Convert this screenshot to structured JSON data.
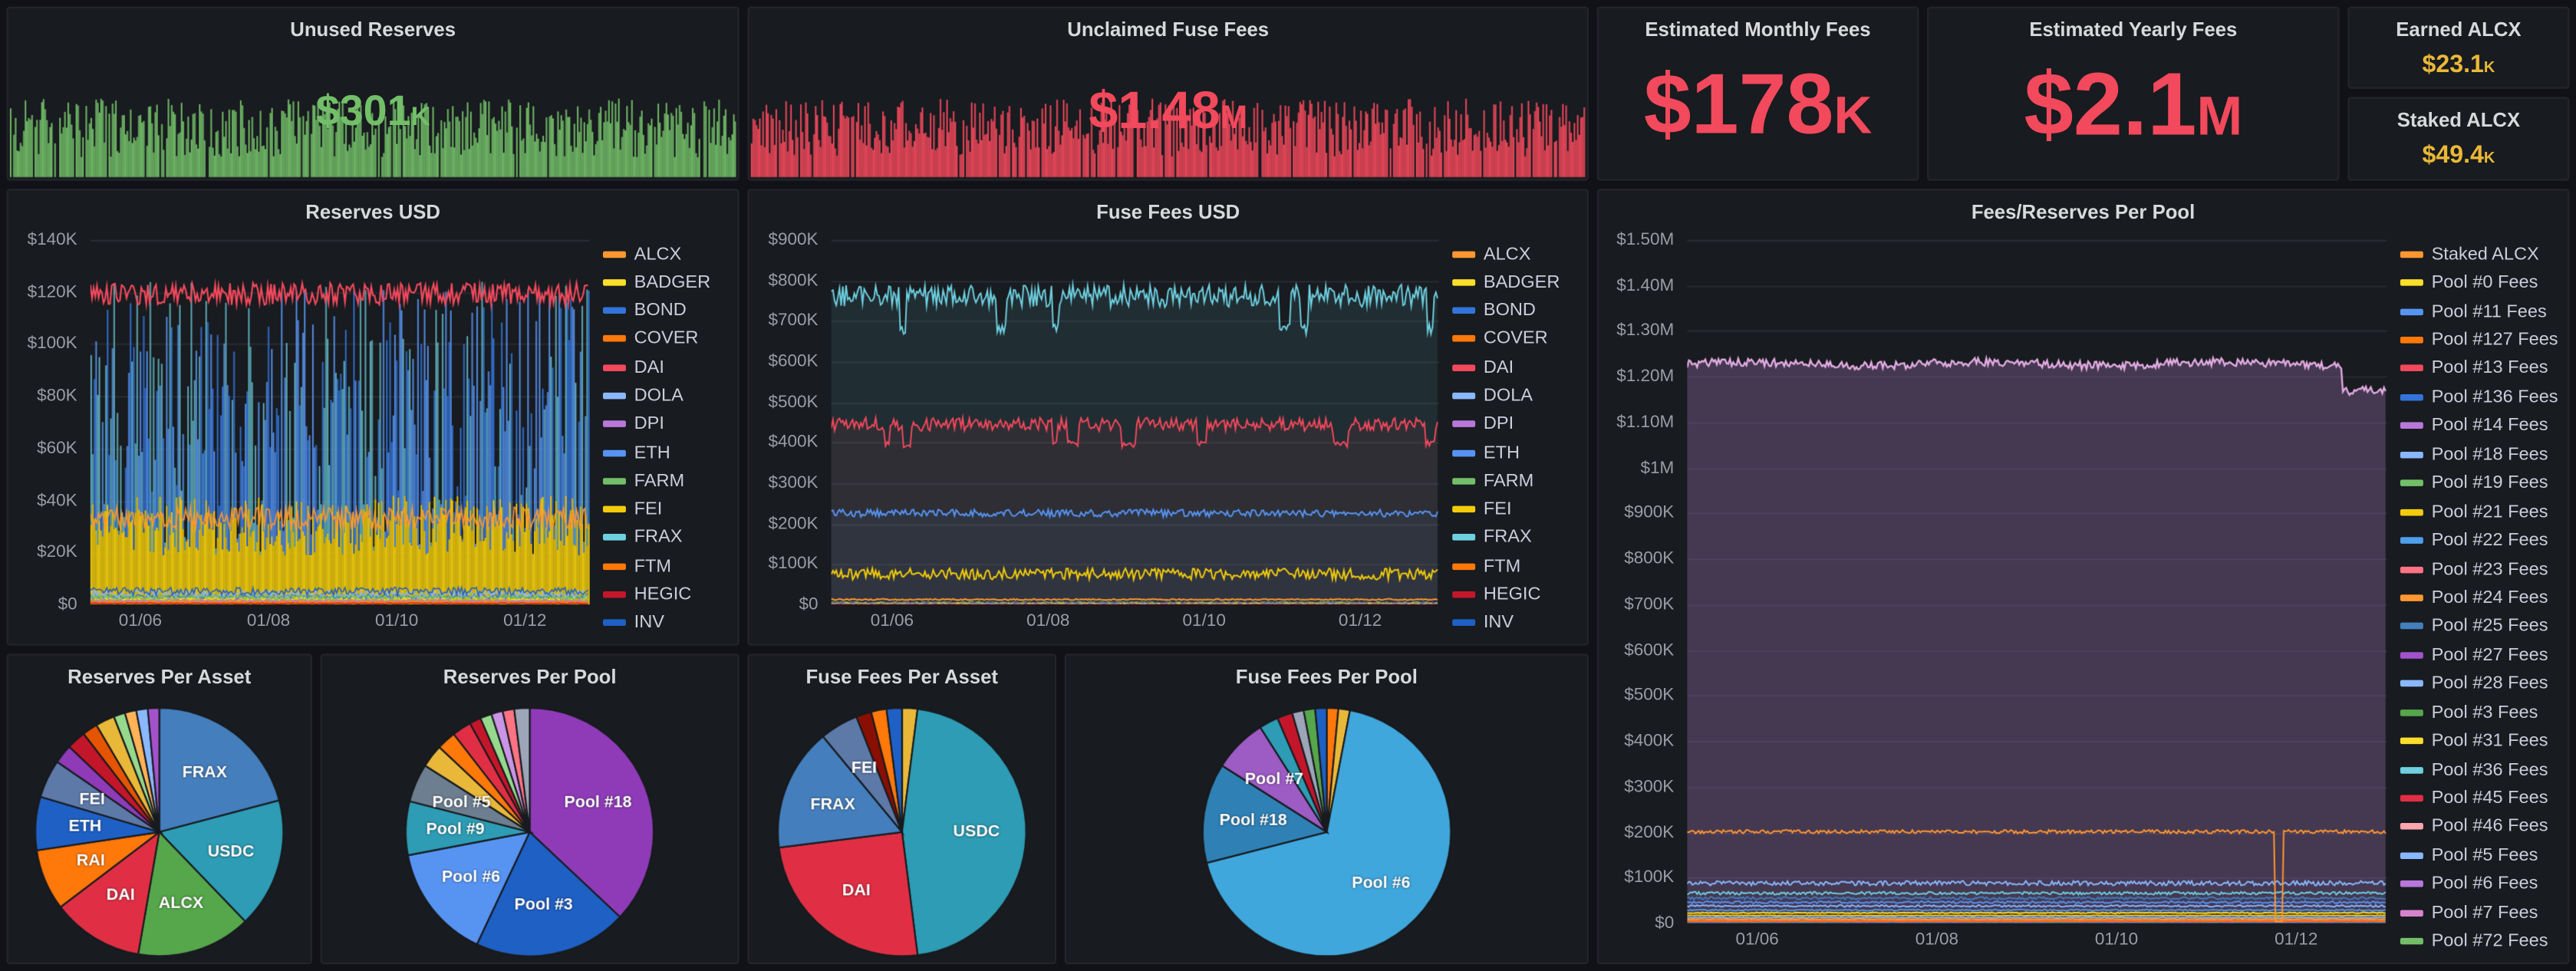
{
  "theme": {
    "page_bg": "#111217",
    "panel_bg": "#181B1F",
    "border": "#23252B",
    "title_color": "#D8D9DA",
    "axis_color": "#9B9DA5",
    "legend_color": "#CCCCDC"
  },
  "stats": [
    {
      "title": "Unused Reserves",
      "value": "$301",
      "suffix": "K",
      "color": "#73BF69",
      "spark": true
    },
    {
      "title": "Unclaimed Fuse Fees",
      "value": "$1.48",
      "suffix": "M",
      "color": "#F2495C",
      "spark": true
    },
    {
      "title": "Estimated Monthly Fees",
      "value": "$178",
      "suffix": "K",
      "color": "#F2495C",
      "spark": false
    },
    {
      "title": "Estimated Yearly Fees",
      "value": "$2.1",
      "suffix": "M",
      "color": "#F2495C",
      "spark": false
    },
    {
      "title": "Earned ALCX",
      "value": "$23.1",
      "suffix": "K",
      "color": "#EAB839",
      "spark": false
    },
    {
      "title": "Staked ALCX",
      "value": "$49.4",
      "suffix": "K",
      "color": "#EAB839",
      "spark": false
    }
  ],
  "chart_data": [
    {
      "id": "reserves_usd",
      "type": "line",
      "render": "stacked",
      "title": "Reserves USD",
      "legend": true,
      "ylim": [
        0,
        140000
      ],
      "yticks": [
        "$0",
        "$20K",
        "$40K",
        "$60K",
        "$80K",
        "$100K",
        "$120K",
        "$140K"
      ],
      "xticks": [
        "01/06",
        "01/08",
        "01/10",
        "01/12"
      ],
      "series": [
        {
          "name": "ALCX",
          "color": "#FF9830",
          "level": 33000
        },
        {
          "name": "BADGER",
          "color": "#FADE2A",
          "level": 2400
        },
        {
          "name": "BOND",
          "color": "#3274D9",
          "level": 3200
        },
        {
          "name": "COVER",
          "color": "#FF780A",
          "level": 1200
        },
        {
          "name": "DAI",
          "color": "#F2495C",
          "level": 119000
        },
        {
          "name": "DOLA",
          "color": "#8AB8FF",
          "level": 4200
        },
        {
          "name": "DPI",
          "color": "#B877D9",
          "level": 1600
        },
        {
          "name": "ETH",
          "color": "#5794F2",
          "level": 95000
        },
        {
          "name": "FARM",
          "color": "#73BF69",
          "level": 2800
        },
        {
          "name": "FEI",
          "color": "#F2CC0C",
          "level": 30000
        },
        {
          "name": "FRAX",
          "color": "#6ED0E0",
          "level": 80000
        },
        {
          "name": "FTM",
          "color": "#FF780A",
          "level": 900
        },
        {
          "name": "HEGIC",
          "color": "#C4162A",
          "level": 500
        },
        {
          "name": "INV",
          "color": "#1F60C4",
          "level": 5200
        }
      ]
    },
    {
      "id": "fuse_fees_usd",
      "type": "line",
      "render": "bands",
      "title": "Fuse Fees USD",
      "legend": true,
      "ylim": [
        0,
        900000
      ],
      "yticks": [
        "$0",
        "$100K",
        "$200K",
        "$300K",
        "$400K",
        "$500K",
        "$600K",
        "$700K",
        "$800K",
        "$900K"
      ],
      "xticks": [
        "01/06",
        "01/08",
        "01/10",
        "01/12"
      ],
      "series": [
        {
          "name": "ALCX",
          "color": "#FF9830",
          "level": 13000
        },
        {
          "name": "BADGER",
          "color": "#FADE2A",
          "level": 2200
        },
        {
          "name": "BOND",
          "color": "#3274D9",
          "level": 1100
        },
        {
          "name": "COVER",
          "color": "#FF780A",
          "level": 600
        },
        {
          "name": "DAI",
          "color": "#F2495C",
          "level": 445000,
          "fill": 0.07,
          "dip": true
        },
        {
          "name": "DOLA",
          "color": "#8AB8FF",
          "level": 800
        },
        {
          "name": "DPI",
          "color": "#B877D9",
          "level": 400
        },
        {
          "name": "ETH",
          "color": "#5794F2",
          "level": 226000,
          "fill": 0.06
        },
        {
          "name": "FARM",
          "color": "#73BF69",
          "level": 5200
        },
        {
          "name": "FEI",
          "color": "#F2CC0C",
          "level": 76000,
          "amp": 14000
        },
        {
          "name": "FRAX",
          "color": "#6ED0E0",
          "level": 762000,
          "fill": 0.1,
          "dip": true
        },
        {
          "name": "FTM",
          "color": "#FF780A",
          "level": 300
        },
        {
          "name": "HEGIC",
          "color": "#C4162A",
          "level": 200
        },
        {
          "name": "INV",
          "color": "#1F60C4",
          "level": 3600
        }
      ]
    },
    {
      "id": "fees_reserves_per_pool",
      "type": "line",
      "render": "pools",
      "title": "Fees/Reserves Per Pool",
      "legend": true,
      "ylim": [
        0,
        1500000
      ],
      "yticks": [
        "$0",
        "$100K",
        "$200K",
        "$300K",
        "$400K",
        "$500K",
        "$600K",
        "$700K",
        "$800K",
        "$900K",
        "$1M",
        "$1.10M",
        "$1.20M",
        "$1.30M",
        "$1.40M",
        "$1.50M"
      ],
      "xticks": [
        "01/06",
        "01/08",
        "01/10",
        "01/12"
      ],
      "series": [
        {
          "name": "Staked ALCX",
          "color": "#FF9830",
          "level": 201000,
          "amp": 4000,
          "spike": 0.845
        },
        {
          "name": "Pool #0 Fees",
          "color": "#FADE2A",
          "level": 23000
        },
        {
          "name": "Pool #11 Fees",
          "color": "#5794F2",
          "level": 46000
        },
        {
          "name": "Pool #127 Fees",
          "color": "#FF780A",
          "level": 6000
        },
        {
          "name": "Pool #13 Fees",
          "color": "#F2495C",
          "level": 4200
        },
        {
          "name": "Pool #136 Fees",
          "color": "#3274D9",
          "level": 2600
        },
        {
          "name": "Pool #14 Fees",
          "color": "#B877D9",
          "level": 2100
        },
        {
          "name": "Pool #18 Fees",
          "color": "#8AB8FF",
          "level": 88000,
          "amp": 5000
        },
        {
          "name": "Pool #19 Fees",
          "color": "#73BF69",
          "level": 1600
        },
        {
          "name": "Pool #21 Fees",
          "color": "#F2CC0C",
          "level": 17000
        },
        {
          "name": "Pool #22 Fees",
          "color": "#4F9EEA",
          "level": 29000
        },
        {
          "name": "Pool #23 Fees",
          "color": "#FF7383",
          "level": 1300
        },
        {
          "name": "Pool #24 Fees",
          "color": "#FF9830",
          "level": 9000
        },
        {
          "name": "Pool #25 Fees",
          "color": "#447EBC",
          "level": 55000
        },
        {
          "name": "Pool #27 Fees",
          "color": "#A352CC",
          "level": 900
        },
        {
          "name": "Pool #28 Fees",
          "color": "#8AB8FF",
          "level": 12500
        },
        {
          "name": "Pool #3 Fees",
          "color": "#56A64B",
          "level": 3300
        },
        {
          "name": "Pool #31 Fees",
          "color": "#FADE2A",
          "level": 700
        },
        {
          "name": "Pool #36 Fees",
          "color": "#6ED0E0",
          "level": 66000
        },
        {
          "name": "Pool #45 Fees",
          "color": "#E02F44",
          "level": 500
        },
        {
          "name": "Pool #46 Fees",
          "color": "#FFA6B0",
          "level": 1100
        },
        {
          "name": "Pool #5 Fees",
          "color": "#8AB8FF",
          "level": 38000
        },
        {
          "name": "Pool #6 Fees",
          "color": "#B877D9",
          "level": 1228000,
          "area": true,
          "drop_at": 0.935,
          "drop_level": 1172000
        },
        {
          "name": "Pool #7 Fees",
          "color": "#D683CE",
          "level": 1900
        },
        {
          "name": "Pool #72 Fees",
          "color": "#73BF69",
          "level": 600
        }
      ]
    },
    {
      "id": "reserves_per_asset",
      "type": "pie",
      "title": "Reserves Per Asset",
      "slices": [
        {
          "label": "FRAX",
          "value": 21,
          "color": "#447EBC"
        },
        {
          "label": "USDC",
          "value": 17,
          "color": "#2D9CB4"
        },
        {
          "label": "ALCX",
          "value": 15,
          "color": "#56A64B"
        },
        {
          "label": "DAI",
          "value": 12,
          "color": "#E02F44"
        },
        {
          "label": "RAI",
          "value": 8,
          "color": "#FF780A"
        },
        {
          "label": "ETH",
          "value": 7,
          "color": "#1F60C4"
        },
        {
          "label": "FEI",
          "value": 5,
          "color": "#5D79A8"
        },
        {
          "label": "",
          "value": 2.5,
          "color": "#8F3BB8"
        },
        {
          "label": "",
          "value": 2.5,
          "color": "#C4162A"
        },
        {
          "label": "",
          "value": 2,
          "color": "#E55400"
        },
        {
          "label": "",
          "value": 2.5,
          "color": "#EAB839"
        },
        {
          "label": "",
          "value": 1.5,
          "color": "#96D98D"
        },
        {
          "label": "",
          "value": 1.5,
          "color": "#FFB357"
        },
        {
          "label": "",
          "value": 1.5,
          "color": "#8AB8FF"
        },
        {
          "label": "",
          "value": 1.5,
          "color": "#A352CC"
        }
      ]
    },
    {
      "id": "reserves_per_pool",
      "type": "pie",
      "title": "Reserves Per Pool",
      "slices": [
        {
          "label": "Pool #18",
          "value": 37,
          "color": "#8F3BB8"
        },
        {
          "label": "Pool #3",
          "value": 20,
          "color": "#1F60C4"
        },
        {
          "label": "Pool #6",
          "value": 15,
          "color": "#5794F2"
        },
        {
          "label": "Pool #9",
          "value": 7,
          "color": "#2D9CB4"
        },
        {
          "label": "Pool #5",
          "value": 5,
          "color": "#6C7E8F"
        },
        {
          "label": "",
          "value": 3,
          "color": "#EAB839"
        },
        {
          "label": "",
          "value": 2.5,
          "color": "#FF780A"
        },
        {
          "label": "",
          "value": 2.5,
          "color": "#E02F44"
        },
        {
          "label": "",
          "value": 1.5,
          "color": "#C4162A"
        },
        {
          "label": "",
          "value": 1.5,
          "color": "#96D98D"
        },
        {
          "label": "",
          "value": 1.5,
          "color": "#CA95E5"
        },
        {
          "label": "",
          "value": 1.5,
          "color": "#FF7383"
        },
        {
          "label": "",
          "value": 2,
          "color": "#9DA5B8"
        }
      ]
    },
    {
      "id": "fuse_fees_per_asset",
      "type": "pie",
      "title": "Fuse Fees Per Asset",
      "slices": [
        {
          "label": "",
          "value": 2,
          "color": "#EAB839"
        },
        {
          "label": "USDC",
          "value": 46,
          "color": "#2D9CB4"
        },
        {
          "label": "DAI",
          "value": 25,
          "color": "#E02F44"
        },
        {
          "label": "FRAX",
          "value": 16,
          "color": "#447EBC"
        },
        {
          "label": "FEI",
          "value": 5,
          "color": "#5D79A8"
        },
        {
          "label": "",
          "value": 2,
          "color": "#890F02"
        },
        {
          "label": "",
          "value": 2,
          "color": "#FF780A"
        },
        {
          "label": "",
          "value": 2,
          "color": "#1F60C4"
        }
      ]
    },
    {
      "id": "fuse_fees_per_pool",
      "type": "pie",
      "title": "Fuse Fees Per Pool",
      "slices": [
        {
          "label": "",
          "value": 1.5,
          "color": "#FF780A"
        },
        {
          "label": "",
          "value": 1.5,
          "color": "#EAB839"
        },
        {
          "label": "Pool #6",
          "value": 68,
          "color": "#3FA7DC"
        },
        {
          "label": "Pool #18",
          "value": 13,
          "color": "#2F81B5"
        },
        {
          "label": "Pool #7",
          "value": 7,
          "color": "#9D5BC4"
        },
        {
          "label": "",
          "value": 2.5,
          "color": "#2D9CB4"
        },
        {
          "label": "",
          "value": 2,
          "color": "#C4162A"
        },
        {
          "label": "",
          "value": 1.5,
          "color": "#9DA5B8"
        },
        {
          "label": "",
          "value": 1.5,
          "color": "#56A64B"
        },
        {
          "label": "",
          "value": 1.5,
          "color": "#1F60C4"
        }
      ]
    }
  ]
}
